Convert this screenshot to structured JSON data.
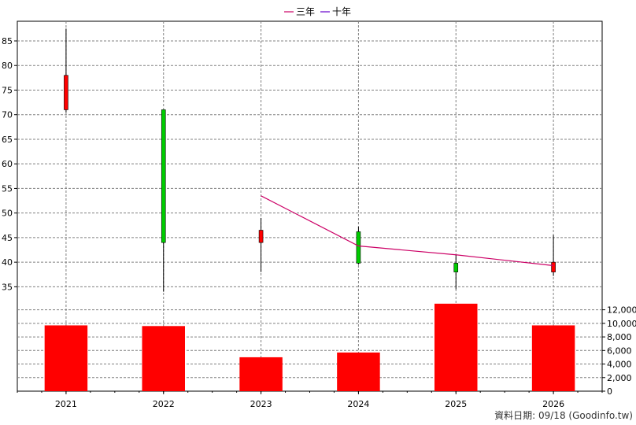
{
  "chart_data": {
    "type": "candlestick_with_volume",
    "legend": [
      "三年",
      "十年"
    ],
    "legend_colors": [
      "#cc0066",
      "#6600cc"
    ],
    "price_axis": {
      "ticks": [
        35,
        40,
        45,
        50,
        55,
        60,
        65,
        70,
        75,
        80,
        85
      ],
      "min": 32.5,
      "max": 89
    },
    "volume_axis": {
      "tick_labels": [
        "0",
        "2,000",
        "4,000",
        "6,000",
        "8,000",
        "10,000",
        "12,000"
      ],
      "ticks": [
        0,
        2000,
        4000,
        6000,
        8000,
        10000,
        12000
      ],
      "max": 13000
    },
    "categories": [
      "2021",
      "2022",
      "2023",
      "2024",
      "2025",
      "2026"
    ],
    "candles": [
      {
        "year": "2021",
        "open": 71.0,
        "close": 78.0,
        "high": 87.5,
        "low": 70.5
      },
      {
        "year": "2022",
        "open": 71.0,
        "close": 44.0,
        "high": 71.0,
        "low": 34.0
      },
      {
        "year": "2023",
        "open": 44.0,
        "close": 46.5,
        "high": 49.0,
        "low": 38.0
      },
      {
        "year": "2024",
        "open": 46.2,
        "close": 39.8,
        "high": 47.2,
        "low": 39.5
      },
      {
        "year": "2025",
        "open": 39.8,
        "close": 38.0,
        "high": 41.5,
        "low": 34.5
      },
      {
        "year": "2026",
        "open": 38.0,
        "close": 40.0,
        "high": 45.5,
        "low": 37.2
      }
    ],
    "line_three_year": [
      {
        "year": "2023",
        "value": 53.5
      },
      {
        "year": "2024",
        "value": 43.3
      },
      {
        "year": "2025",
        "value": 41.5
      },
      {
        "year": "2026",
        "value": 39.3
      }
    ],
    "volume": [
      {
        "year": "2021",
        "value": 9700
      },
      {
        "year": "2022",
        "value": 9600
      },
      {
        "year": "2023",
        "value": 5000
      },
      {
        "year": "2024",
        "value": 5700
      },
      {
        "year": "2025",
        "value": 12900
      },
      {
        "year": "2026",
        "value": 9700
      }
    ],
    "colors": {
      "up": "#00cc00",
      "down": "#ff0000",
      "volume": "#ff0000",
      "grid": "#808080"
    },
    "grid": true
  },
  "footer": {
    "text": "資料日期: 09/18  (Goodinfo.tw)"
  }
}
